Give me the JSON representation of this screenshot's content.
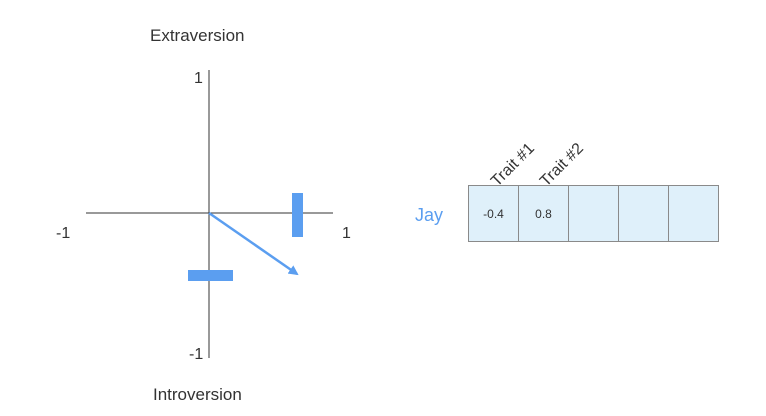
{
  "colors": {
    "accent": "#5b9ef0",
    "cell_fill": "#dff0fa",
    "cell_border": "#8a8a8a",
    "axis": "#333333"
  },
  "plot": {
    "top_label": "Extraversion",
    "bottom_label": "Introversion",
    "tick_y_max": "1",
    "tick_y_min": "-1",
    "tick_x_min": "-1",
    "tick_x_max": "1",
    "vector": {
      "x": 0.8,
      "y": -0.4
    }
  },
  "vector_table": {
    "name": "Jay",
    "headers": [
      "Trait #1",
      "Trait #2"
    ],
    "cells": [
      "-0.4",
      "0.8",
      "",
      "",
      ""
    ]
  }
}
